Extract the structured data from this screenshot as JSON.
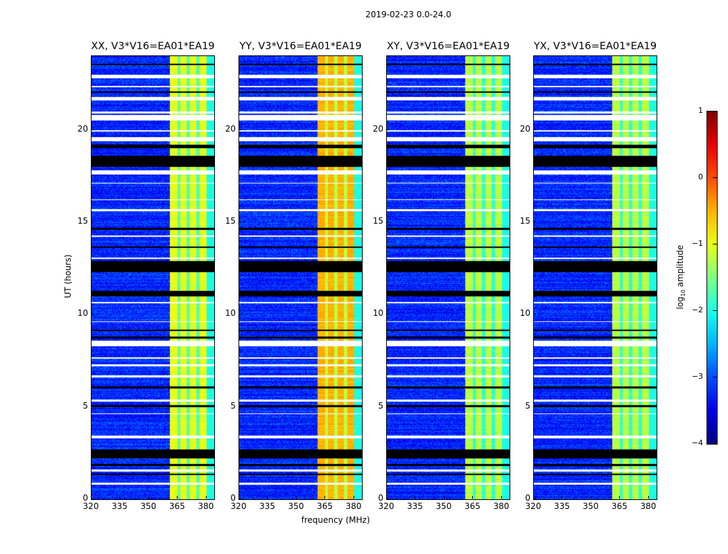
{
  "suptitle": "2019-02-23 0.0-24.0",
  "chart_data": {
    "type": "heatmap",
    "xlabel": "frequency (MHz)",
    "ylabel": "UT (hours)",
    "xlim": [
      320,
      384
    ],
    "ylim": [
      0,
      24
    ],
    "xticks": [
      320,
      335,
      350,
      365,
      380
    ],
    "yticks": [
      0,
      5,
      10,
      15,
      20
    ],
    "colorbar": {
      "label_main": "log",
      "label_sub": "10",
      "label_rest": " amplitude",
      "range": [
        -4,
        1
      ],
      "ticks": [
        1,
        0,
        -1,
        -2,
        -3,
        -4
      ],
      "tick_labels": [
        "1",
        "0",
        "−1",
        "−2",
        "−3",
        "−4"
      ],
      "colormap": "jet"
    },
    "background_level": -3.2,
    "bright_band_mhz": [
      361,
      380
    ],
    "band_channel_gaps_mhz": [
      365.5,
      370.5,
      375.5
    ],
    "flagged_white_hours": [
      [
        22.8,
        23.0
      ],
      [
        22.3,
        22.4
      ],
      [
        21.6,
        21.8
      ],
      [
        20.9,
        21.0
      ],
      [
        20.5,
        20.8
      ],
      [
        19.9,
        20.0
      ],
      [
        19.4,
        19.6
      ],
      [
        17.6,
        17.8
      ],
      [
        17.1,
        17.15
      ],
      [
        16.2,
        16.25
      ],
      [
        15.6,
        15.7
      ],
      [
        14.2,
        14.3
      ],
      [
        13.0,
        13.1
      ],
      [
        10.6,
        10.7
      ],
      [
        9.6,
        9.65
      ],
      [
        8.3,
        8.6
      ],
      [
        7.6,
        7.7
      ],
      [
        7.2,
        7.3
      ],
      [
        6.6,
        6.7
      ],
      [
        5.3,
        5.4
      ],
      [
        4.6,
        4.65
      ],
      [
        3.3,
        3.45
      ],
      [
        1.5,
        1.6
      ],
      [
        0.8,
        0.9
      ]
    ],
    "flagged_black_hours": [
      [
        23.5,
        23.6
      ],
      [
        22.0,
        22.1
      ],
      [
        19.0,
        19.2
      ],
      [
        18.0,
        18.6
      ],
      [
        14.6,
        14.7
      ],
      [
        13.6,
        13.7
      ],
      [
        12.3,
        12.9
      ],
      [
        11.0,
        11.3
      ],
      [
        9.1,
        9.2
      ],
      [
        8.7,
        8.8
      ],
      [
        6.0,
        6.1
      ],
      [
        5.0,
        5.1
      ],
      [
        2.2,
        2.7
      ],
      [
        1.8,
        1.9
      ],
      [
        1.3,
        1.4
      ]
    ],
    "panels": [
      {
        "title": "XX, V3*V16=EA01*EA19",
        "band_level": -1.0
      },
      {
        "title": "YY, V3*V16=EA01*EA19",
        "band_level": -0.5
      },
      {
        "title": "XY, V3*V16=EA01*EA19",
        "band_level": -1.2
      },
      {
        "title": "YX, V3*V16=EA01*EA19",
        "band_level": -1.2
      }
    ]
  }
}
